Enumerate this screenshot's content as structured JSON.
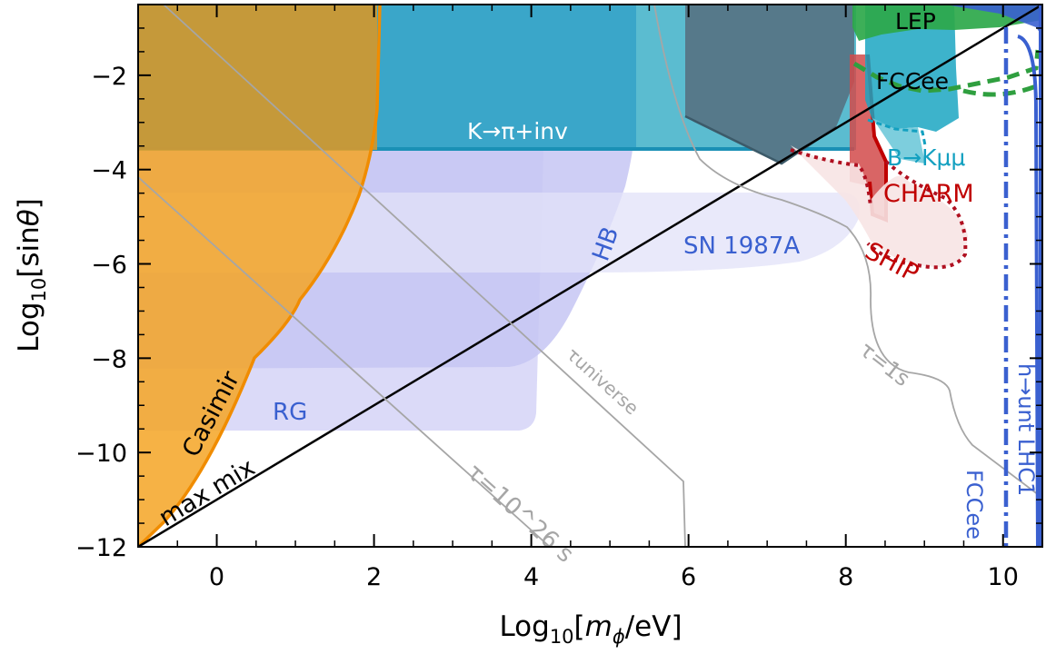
{
  "chart_data": {
    "type": "area",
    "xlabel": "Log10[mφ/eV]",
    "ylabel": "Log10[sinθ]",
    "xlim": [
      -1,
      10.5
    ],
    "ylim": [
      -12,
      -0.5
    ],
    "x_ticks": [
      "0",
      "2",
      "4",
      "6",
      "8",
      "10"
    ],
    "x_tick_values": [
      0,
      2,
      4,
      6,
      8,
      10
    ],
    "y_ticks": [
      "−2",
      "−4",
      "−6",
      "−8",
      "−10",
      "−12"
    ],
    "y_tick_values": [
      -2,
      -4,
      -6,
      -8,
      -10,
      -12
    ],
    "grid": false,
    "colors": {
      "casimir": "#f5a524",
      "casimir_edge": "#f08c00",
      "kaon": "#3aa6c9",
      "stellar": "#c9c8f5",
      "hb_edge": "#b5b3ee",
      "slate": "#56798a",
      "lep": "#2da84a",
      "charm": "#d24a4a",
      "charm_edge": "#c00000",
      "ship": "#f7e4e4",
      "ship_edge": "#b01020",
      "bkmumu": "#13a0c0",
      "fccee_blue": "#3a60d0",
      "lifetime": "#a6a6a6"
    },
    "series": [
      {
        "name": "Casimir",
        "label": "Casimir",
        "boundary": [
          [
            -1,
            -12
          ],
          [
            -0.5,
            -11.2
          ],
          [
            0,
            -9.8
          ],
          [
            0.5,
            -8.0
          ],
          [
            1,
            -7.2
          ],
          [
            1.5,
            -5.5
          ],
          [
            1.8,
            -4.0
          ],
          [
            2,
            -2.0
          ],
          [
            2,
            -0.5
          ]
        ]
      },
      {
        "name": "K→π+inv",
        "label": "K→π+inv",
        "y_bound": -3.6,
        "x_range": [
          2,
          8.2
        ]
      },
      {
        "name": "HB",
        "label": "HB",
        "boundary": [
          [
            -1,
            -8.2
          ],
          [
            4,
            -8.0
          ],
          [
            4.5,
            -7.0
          ],
          [
            5.3,
            -5.0
          ],
          [
            5.4,
            -3.6
          ]
        ]
      },
      {
        "name": "RG",
        "label": "RG",
        "boundary": [
          [
            -1,
            -9.5
          ],
          [
            4.1,
            -9.4
          ],
          [
            4.2,
            -8.0
          ],
          [
            4.25,
            -3.6
          ]
        ]
      },
      {
        "name": "SN 1987A",
        "label": "SN 1987A",
        "x_range": [
          -1,
          8.2
        ],
        "y_range": [
          -6.2,
          -4.5
        ]
      },
      {
        "name": "max mix",
        "label": "max mix",
        "points": [
          [
            -1,
            -12
          ],
          [
            10.5,
            -0.5
          ]
        ]
      },
      {
        "name": "τuniverse",
        "label": "τuniverse",
        "points": [
          [
            -1,
            -0.6
          ],
          [
            6,
            -10.5
          ],
          [
            6,
            -12
          ]
        ]
      },
      {
        "name": "τ=10^26 s",
        "label": "τ=10^26 s",
        "points": [
          [
            -1,
            -4.2
          ],
          [
            4.3,
            -12
          ]
        ]
      },
      {
        "name": "τ=1s",
        "label": "τ=1s",
        "points": [
          [
            5.4,
            -0.5
          ],
          [
            6.0,
            -3.5
          ],
          [
            7.8,
            -4.5
          ],
          [
            8.6,
            -5.5
          ],
          [
            8.2,
            -7.5
          ],
          [
            9.3,
            -8.0
          ],
          [
            9.4,
            -9.3
          ],
          [
            10.5,
            -10.5
          ]
        ]
      },
      {
        "name": "LEP",
        "label": "LEP",
        "x_range": [
          8.2,
          10.5
        ],
        "y_range": [
          -1.0,
          -0.5
        ]
      },
      {
        "name": "FCCee",
        "label": "FCCee",
        "x_range": [
          8.2,
          9.6
        ],
        "y_range": [
          -3.3,
          -1.0
        ]
      },
      {
        "name": "B→Kμμ",
        "label": "B→Kμμ"
      },
      {
        "name": "CHARM",
        "label": "CHARM",
        "x_range": [
          8.2,
          8.6
        ],
        "y_range": [
          -5.4,
          -1.5
        ]
      },
      {
        "name": "SHIP",
        "label": "SHIP",
        "x_range": [
          7.3,
          9.7
        ],
        "y_range": [
          -6.0,
          -4.0
        ]
      },
      {
        "name": "h→unt LHC1",
        "label": "h→unt LHC1",
        "x": 10.1
      },
      {
        "name": "FCCee (h decay)",
        "label": "FCCee",
        "x": 10.5
      }
    ]
  }
}
